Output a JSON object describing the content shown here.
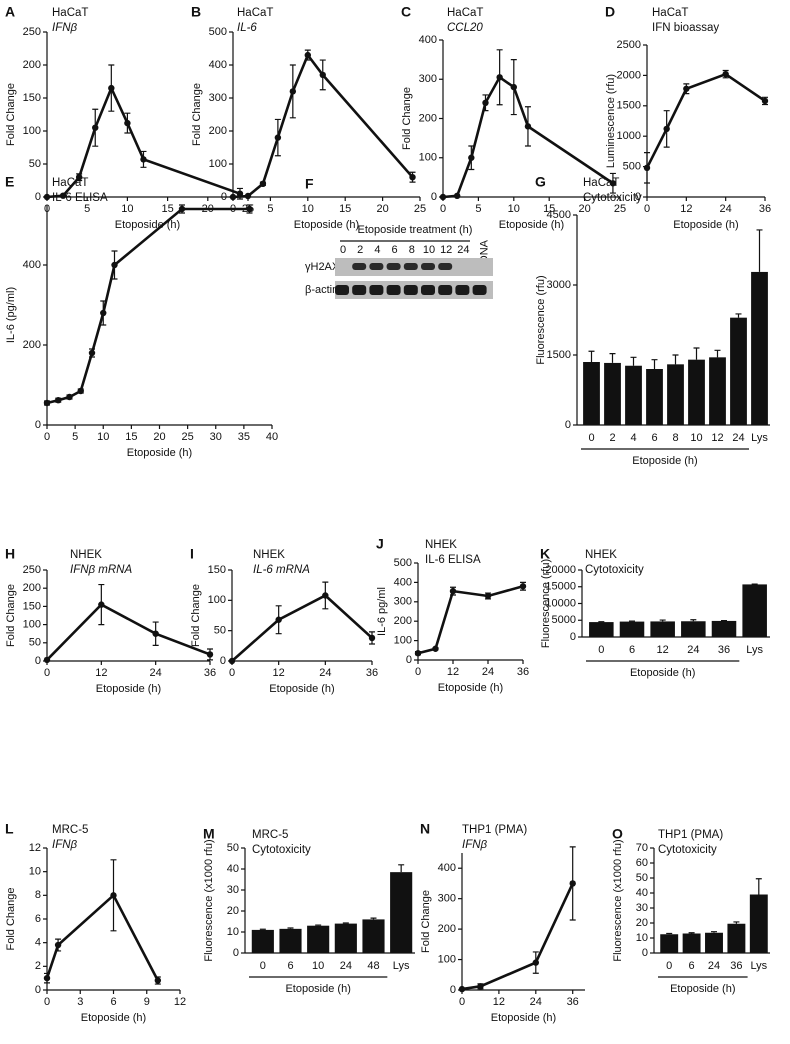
{
  "chart_data": [
    {
      "type": "line",
      "panel": "A",
      "title": "HaCaT",
      "subtitle": "IFNβ",
      "ylabel": "Fold Change",
      "xlabel": "Etoposide (h)",
      "x": [
        0,
        2,
        4,
        6,
        8,
        10,
        12,
        24
      ],
      "values": [
        0,
        2,
        30,
        105,
        165,
        112,
        57,
        5
      ],
      "errors": [
        0,
        0,
        5,
        28,
        35,
        15,
        12,
        8
      ],
      "xlim": [
        0,
        25
      ],
      "xticks": [
        0,
        5,
        10,
        15,
        20,
        25
      ],
      "ylim": [
        0,
        250
      ],
      "yticks": [
        0,
        50,
        100,
        150,
        200,
        250
      ],
      "color": "#111111"
    },
    {
      "type": "line",
      "panel": "B",
      "title": "HaCaT",
      "subtitle": "IL-6",
      "ylabel": "Fold Change",
      "xlabel": "Etoposide (h)",
      "x": [
        0,
        2,
        4,
        6,
        8,
        10,
        12,
        24
      ],
      "values": [
        0,
        3,
        40,
        180,
        320,
        430,
        370,
        60
      ],
      "errors": [
        0,
        0,
        5,
        55,
        80,
        15,
        45,
        15
      ],
      "xlim": [
        0,
        25
      ],
      "xticks": [
        0,
        5,
        10,
        15,
        20,
        25
      ],
      "ylim": [
        0,
        500
      ],
      "yticks": [
        0,
        100,
        200,
        300,
        400,
        500
      ],
      "color": "#111111"
    },
    {
      "type": "line",
      "panel": "C",
      "title": "HaCaT",
      "subtitle": "CCL20",
      "ylabel": "Fold Change",
      "xlabel": "Etoposide (h)",
      "x": [
        0,
        2,
        4,
        6,
        8,
        10,
        12,
        24
      ],
      "values": [
        0,
        3,
        100,
        240,
        305,
        280,
        180,
        35
      ],
      "errors": [
        0,
        0,
        30,
        20,
        70,
        70,
        50,
        25
      ],
      "xlim": [
        0,
        25
      ],
      "xticks": [
        0,
        5,
        10,
        15,
        20,
        25
      ],
      "ylim": [
        0,
        400
      ],
      "yticks": [
        0,
        100,
        200,
        300,
        400
      ],
      "color": "#111111"
    },
    {
      "type": "line",
      "panel": "D",
      "title": "HaCaT",
      "subtitle": "IFN bioassay",
      "ylabel": "Luminescence (rfu)",
      "xlabel": "Etoposide (h)",
      "x": [
        0,
        6,
        12,
        24,
        36
      ],
      "values": [
        480,
        1120,
        1780,
        2020,
        1580
      ],
      "errors": [
        250,
        300,
        80,
        60,
        60
      ],
      "xlim": [
        0,
        36
      ],
      "xticks": [
        0,
        12,
        24,
        36
      ],
      "ylim": [
        0,
        2500
      ],
      "yticks": [
        0,
        500,
        1000,
        1500,
        2000,
        2500
      ],
      "color": "#111111"
    },
    {
      "type": "line",
      "panel": "E",
      "title": "HaCaT",
      "subtitle": "IL-6 ELISA",
      "ylabel": "IL-6 (pg/ml)",
      "xlabel": "Etoposide (h)",
      "x": [
        0,
        2,
        4,
        6,
        8,
        10,
        12,
        24,
        36
      ],
      "values": [
        55,
        62,
        70,
        85,
        180,
        280,
        400,
        540,
        540
      ],
      "errors": [
        5,
        5,
        5,
        5,
        10,
        30,
        35,
        10,
        10
      ],
      "xlim": [
        0,
        40
      ],
      "xticks": [
        0,
        5,
        10,
        15,
        20,
        25,
        30,
        35,
        40
      ],
      "ylim": [
        0,
        550
      ],
      "yticks": [
        0,
        200,
        400
      ],
      "color": "#111111"
    },
    {
      "type": "blot",
      "panel": "F",
      "title": "Etoposide treatment (h)",
      "lanes": [
        "0",
        "2",
        "4",
        "6",
        "8",
        "10",
        "12",
        "24",
        "DNA"
      ],
      "rows": [
        "γH2AX",
        "β-actin"
      ]
    },
    {
      "type": "bar",
      "panel": "G",
      "title": "HaCaT",
      "subtitle": "Cytotoxicity",
      "ylabel": "Fluorescence (rfu)",
      "xlabel": "Etoposide (h)",
      "categories": [
        "0",
        "2",
        "4",
        "6",
        "8",
        "10",
        "12",
        "24",
        "Lys"
      ],
      "values": [
        1350,
        1330,
        1270,
        1200,
        1300,
        1400,
        1450,
        2300,
        3280
      ],
      "errors": [
        230,
        200,
        180,
        200,
        200,
        250,
        150,
        80,
        900
      ],
      "ylim": [
        0,
        4500
      ],
      "yticks": [
        0,
        1500,
        3000,
        4500
      ],
      "color": "#111111"
    },
    {
      "type": "line",
      "panel": "H",
      "title": "NHEK",
      "subtitle": "IFNβ mRNA",
      "ylabel": "Fold Change",
      "xlabel": "Etoposide (h)",
      "x": [
        0,
        12,
        24,
        36
      ],
      "values": [
        3,
        155,
        75,
        18
      ],
      "errors": [
        0,
        55,
        32,
        15
      ],
      "xlim": [
        0,
        36
      ],
      "xticks": [
        0,
        12,
        24,
        36
      ],
      "ylim": [
        0,
        250
      ],
      "yticks": [
        0,
        50,
        100,
        150,
        200,
        250
      ],
      "color": "#111111"
    },
    {
      "type": "line",
      "panel": "I",
      "title": "NHEK",
      "subtitle": "IL-6 mRNA",
      "ylabel": "Fold Change",
      "xlabel": "Etoposide (h)",
      "x": [
        0,
        12,
        24,
        36
      ],
      "values": [
        0,
        68,
        108,
        38
      ],
      "errors": [
        0,
        23,
        22,
        10
      ],
      "xlim": [
        0,
        36
      ],
      "xticks": [
        0,
        12,
        24,
        36
      ],
      "ylim": [
        0,
        150
      ],
      "yticks": [
        0,
        50,
        100,
        150
      ],
      "color": "#111111"
    },
    {
      "type": "line",
      "panel": "J",
      "title": "NHEK",
      "subtitle": "IL-6 ELISA",
      "ylabel": "IL-6 pg/ml",
      "xlabel": "Etoposide (h)",
      "x": [
        0,
        6,
        12,
        24,
        36
      ],
      "values": [
        35,
        58,
        355,
        330,
        380
      ],
      "errors": [
        8,
        5,
        20,
        15,
        20
      ],
      "xlim": [
        0,
        36
      ],
      "xticks": [
        0,
        12,
        24,
        36
      ],
      "ylim": [
        0,
        500
      ],
      "yticks": [
        0,
        100,
        200,
        300,
        400,
        500
      ],
      "color": "#111111"
    },
    {
      "type": "bar",
      "panel": "K",
      "title": "NHEK",
      "subtitle": "Cytotoxicity",
      "ylabel": "Fluorescence (rfu)",
      "xlabel": "Etoposide (h)",
      "categories": [
        "0",
        "6",
        "12",
        "24",
        "36",
        "Lys"
      ],
      "values": [
        4450,
        4600,
        4650,
        4700,
        4800,
        15700
      ],
      "errors": [
        100,
        150,
        400,
        450,
        100,
        100
      ],
      "ylim": [
        0,
        20000
      ],
      "yticks": [
        0,
        5000,
        10000,
        15000,
        20000
      ],
      "color": "#111111"
    },
    {
      "type": "line",
      "panel": "L",
      "title": "MRC-5",
      "subtitle": "IFNβ",
      "ylabel": "Fold Change",
      "xlabel": "Etoposide (h)",
      "x": [
        0,
        1,
        6,
        10
      ],
      "values": [
        1,
        3.8,
        8,
        0.8
      ],
      "errors": [
        0.4,
        0.5,
        3,
        0.3
      ],
      "xlim": [
        0,
        12
      ],
      "xticks": [
        0,
        3,
        6,
        9,
        12
      ],
      "ylim": [
        0,
        12
      ],
      "yticks": [
        0,
        2,
        4,
        6,
        8,
        10,
        12
      ],
      "color": "#111111"
    },
    {
      "type": "bar",
      "panel": "M",
      "title": "MRC-5",
      "subtitle": "Cytotoxicity",
      "ylabel": "Fluorescence (x1000 rfu)",
      "xlabel": "Etoposide (h)",
      "categories": [
        "0",
        "6",
        "10",
        "24",
        "48",
        "Lys"
      ],
      "values": [
        11,
        11.5,
        13,
        14,
        16,
        38.5
      ],
      "errors": [
        0.3,
        0.4,
        0.3,
        0.3,
        0.6,
        3.5
      ],
      "ylim": [
        0,
        50
      ],
      "yticks": [
        0,
        10,
        20,
        30,
        40,
        50
      ],
      "color": "#111111"
    },
    {
      "type": "line",
      "panel": "N",
      "title": "THP1 (PMA)",
      "subtitle": "IFNβ",
      "ylabel": "Fold Change",
      "xlabel": "Etoposide (h)",
      "x": [
        0,
        6,
        24,
        36
      ],
      "values": [
        3,
        12,
        90,
        350
      ],
      "errors": [
        0,
        8,
        35,
        120
      ],
      "xlim": [
        0,
        40
      ],
      "xticks": [
        0,
        12,
        24,
        36
      ],
      "ylim": [
        0,
        450
      ],
      "yticks": [
        0,
        100,
        200,
        300,
        400
      ],
      "color": "#111111"
    },
    {
      "type": "bar",
      "panel": "O",
      "title": "THP1 (PMA)",
      "subtitle": "Cytotoxicity",
      "ylabel": "Fluorescence (x1000 rfu)",
      "xlabel": "Etoposide (h)",
      "categories": [
        "0",
        "6",
        "24",
        "36",
        "Lys"
      ],
      "values": [
        12.5,
        13,
        13.5,
        19.5,
        39
      ],
      "errors": [
        0.5,
        0.5,
        0.7,
        1.2,
        10.5
      ],
      "ylim": [
        0,
        70
      ],
      "yticks": [
        0,
        10,
        20,
        30,
        40,
        50,
        60,
        70
      ],
      "color": "#111111"
    }
  ]
}
